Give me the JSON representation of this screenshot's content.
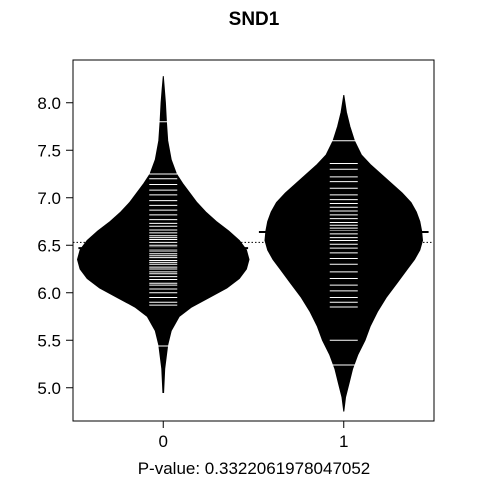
{
  "chart_data": {
    "type": "beanplot",
    "title": "SND1",
    "xlabel": "P-value: 0.3322061978047052",
    "ylabel": "",
    "categories": [
      "0",
      "1"
    ],
    "y_ticks": [
      "5.0",
      "5.5",
      "6.0",
      "6.5",
      "7.0",
      "7.5",
      "8.0"
    ],
    "ylim": [
      4.65,
      8.45
    ],
    "overall_mean": 6.53,
    "grid": false,
    "series": [
      {
        "category": "0",
        "mean": 6.47,
        "density": [
          [
            4.95,
            0.002
          ],
          [
            5.2,
            0.008
          ],
          [
            5.45,
            0.025
          ],
          [
            5.6,
            0.045
          ],
          [
            5.75,
            0.09
          ],
          [
            5.85,
            0.16
          ],
          [
            5.95,
            0.26
          ],
          [
            6.05,
            0.36
          ],
          [
            6.15,
            0.43
          ],
          [
            6.25,
            0.47
          ],
          [
            6.35,
            0.485
          ],
          [
            6.45,
            0.47
          ],
          [
            6.55,
            0.43
          ],
          [
            6.65,
            0.37
          ],
          [
            6.75,
            0.3
          ],
          [
            6.85,
            0.24
          ],
          [
            6.95,
            0.19
          ],
          [
            7.05,
            0.15
          ],
          [
            7.15,
            0.11
          ],
          [
            7.25,
            0.075
          ],
          [
            7.4,
            0.045
          ],
          [
            7.6,
            0.025
          ],
          [
            7.8,
            0.018
          ],
          [
            8.0,
            0.012
          ],
          [
            8.15,
            0.006
          ],
          [
            8.28,
            0.0
          ]
        ],
        "observations": [
          5.44,
          5.87,
          5.9,
          5.95,
          6.0,
          6.04,
          6.08,
          6.1,
          6.14,
          6.17,
          6.2,
          6.22,
          6.25,
          6.27,
          6.3,
          6.32,
          6.34,
          6.37,
          6.39,
          6.41,
          6.44,
          6.46,
          6.48,
          6.5,
          6.53,
          6.56,
          6.58,
          6.6,
          6.63,
          6.66,
          6.7,
          6.73,
          6.77,
          6.82,
          6.87,
          6.92,
          6.97,
          7.03,
          7.08,
          7.14,
          7.2,
          7.25,
          7.8
        ]
      },
      {
        "category": "1",
        "mean": 6.64,
        "density": [
          [
            4.75,
            0.0
          ],
          [
            4.9,
            0.01
          ],
          [
            5.05,
            0.03
          ],
          [
            5.2,
            0.05
          ],
          [
            5.35,
            0.08
          ],
          [
            5.5,
            0.12
          ],
          [
            5.65,
            0.15
          ],
          [
            5.8,
            0.19
          ],
          [
            5.95,
            0.24
          ],
          [
            6.1,
            0.3
          ],
          [
            6.25,
            0.36
          ],
          [
            6.35,
            0.4
          ],
          [
            6.45,
            0.43
          ],
          [
            6.55,
            0.445
          ],
          [
            6.65,
            0.44
          ],
          [
            6.75,
            0.43
          ],
          [
            6.85,
            0.41
          ],
          [
            6.95,
            0.38
          ],
          [
            7.05,
            0.33
          ],
          [
            7.15,
            0.27
          ],
          [
            7.25,
            0.21
          ],
          [
            7.35,
            0.15
          ],
          [
            7.45,
            0.1
          ],
          [
            7.6,
            0.06
          ],
          [
            7.75,
            0.035
          ],
          [
            7.9,
            0.015
          ],
          [
            8.08,
            0.0
          ]
        ],
        "observations": [
          5.24,
          5.5,
          5.85,
          5.9,
          5.95,
          6.02,
          6.08,
          6.15,
          6.22,
          6.3,
          6.36,
          6.42,
          6.47,
          6.51,
          6.55,
          6.58,
          6.62,
          6.65,
          6.68,
          6.71,
          6.74,
          6.78,
          6.82,
          6.86,
          6.9,
          6.94,
          6.98,
          7.03,
          7.1,
          7.17,
          7.22,
          7.3,
          7.36,
          7.6
        ]
      }
    ]
  }
}
